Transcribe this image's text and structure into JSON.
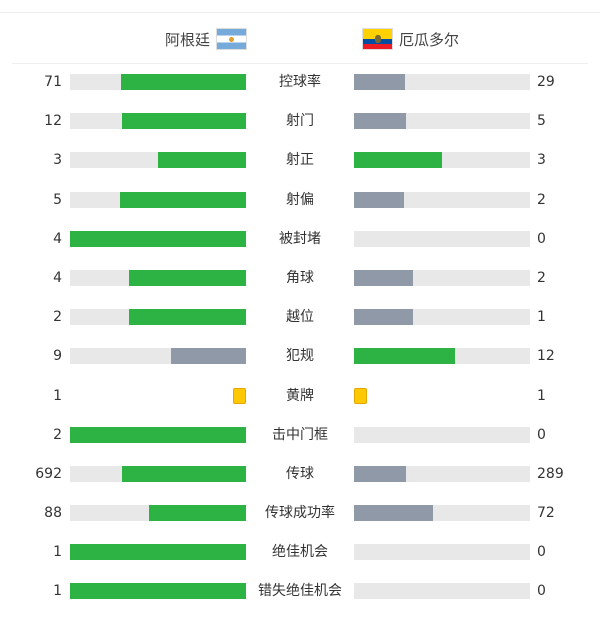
{
  "colors": {
    "win": "#2db344",
    "lose": "#9099a8",
    "track": "#e8e8e8",
    "card": "#ffc800"
  },
  "home": {
    "name": "阿根廷",
    "flag": "argentina-flag"
  },
  "away": {
    "name": "厄瓜多尔",
    "flag": "ecuador-flag"
  },
  "stats": [
    {
      "label": "控球率",
      "home": "71",
      "away": "29",
      "hs": 71,
      "as": 29
    },
    {
      "label": "射门",
      "home": "12",
      "away": "5",
      "hs": 12,
      "as": 5
    },
    {
      "label": "射正",
      "home": "3",
      "away": "3",
      "hs": 3,
      "as": 3
    },
    {
      "label": "射偏",
      "home": "5",
      "away": "2",
      "hs": 5,
      "as": 2
    },
    {
      "label": "被封堵",
      "home": "4",
      "away": "0",
      "hs": 4,
      "as": 0
    },
    {
      "label": "角球",
      "home": "4",
      "away": "2",
      "hs": 4,
      "as": 2
    },
    {
      "label": "越位",
      "home": "2",
      "away": "1",
      "hs": 2,
      "as": 1
    },
    {
      "label": "犯规",
      "home": "9",
      "away": "12",
      "hs": 9,
      "as": 12
    },
    {
      "label": "黄牌",
      "home": "1",
      "away": "1",
      "hs": 1,
      "as": 1,
      "card": true
    },
    {
      "label": "击中门框",
      "home": "2",
      "away": "0",
      "hs": 2,
      "as": 0
    },
    {
      "label": "传球",
      "home": "692",
      "away": "289",
      "hs": 692,
      "as": 289
    },
    {
      "label": "传球成功率",
      "home": "88",
      "away": "72",
      "hs": 88,
      "as": 72
    },
    {
      "label": "绝佳机会",
      "home": "1",
      "away": "0",
      "hs": 1,
      "as": 0
    },
    {
      "label": "错失绝佳机会",
      "home": "1",
      "away": "0",
      "hs": 1,
      "as": 0
    }
  ]
}
